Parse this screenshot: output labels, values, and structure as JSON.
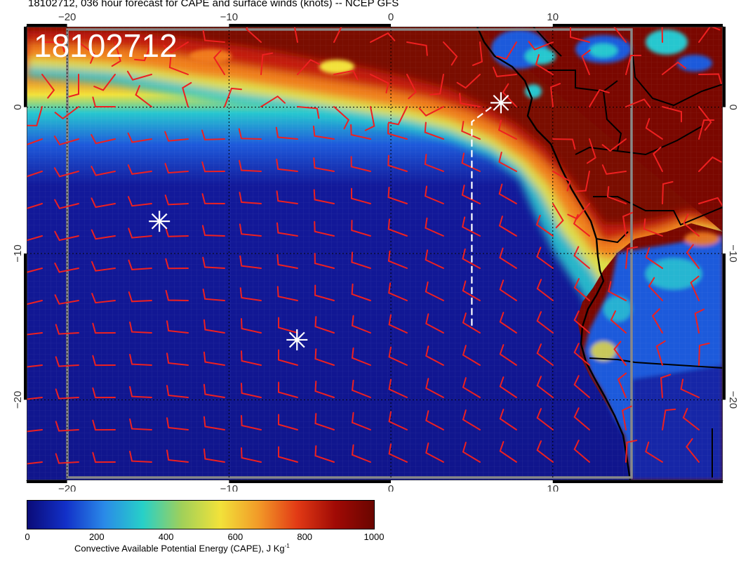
{
  "title": "18102712, 036 hour forecast for CAPE and surface winds (knots) -- NCEP GFS",
  "stamp": "18102712",
  "map": {
    "lon_range": [
      -22.5,
      20.5
    ],
    "lat_range": [
      -25.5,
      5.5
    ],
    "x_tick_labels": [
      "−20",
      "−10",
      "0",
      "10"
    ],
    "y_tick_labels": [
      "0",
      "−10",
      "−20"
    ],
    "colors": {
      "ocean_low": "#10158c",
      "ocean_mid": "#1e5adb",
      "cyan": "#27c7cf",
      "yellow": "#f2e23a",
      "orange": "#f07a1d",
      "red": "#cc1a10",
      "high": "#7a0700",
      "barbs": "#ee2020",
      "coast": "#000000",
      "markers": "#ffffff"
    },
    "markers": [
      {
        "lon": -14.3,
        "lat": -7.8
      },
      {
        "lon": -5.8,
        "lat": -15.9
      },
      {
        "lon": 6.8,
        "lat": 0.3
      }
    ],
    "track": [
      [
        6.2,
        0.0
      ],
      [
        5.0,
        -1.0
      ],
      [
        5.0,
        -15.0
      ]
    ]
  },
  "colorbar": {
    "ticks": [
      "0",
      "200",
      "400",
      "600",
      "800",
      "1000"
    ],
    "caption": "Convective Available Potential Energy (CAPE), J Kg",
    "caption_sup": "-1",
    "stops": [
      "#0a0b78",
      "#1230c8",
      "#2a8ae8",
      "#27d0c8",
      "#9fd05a",
      "#f2e23a",
      "#f29a28",
      "#e23a15",
      "#a00a05",
      "#6a0500"
    ]
  }
}
